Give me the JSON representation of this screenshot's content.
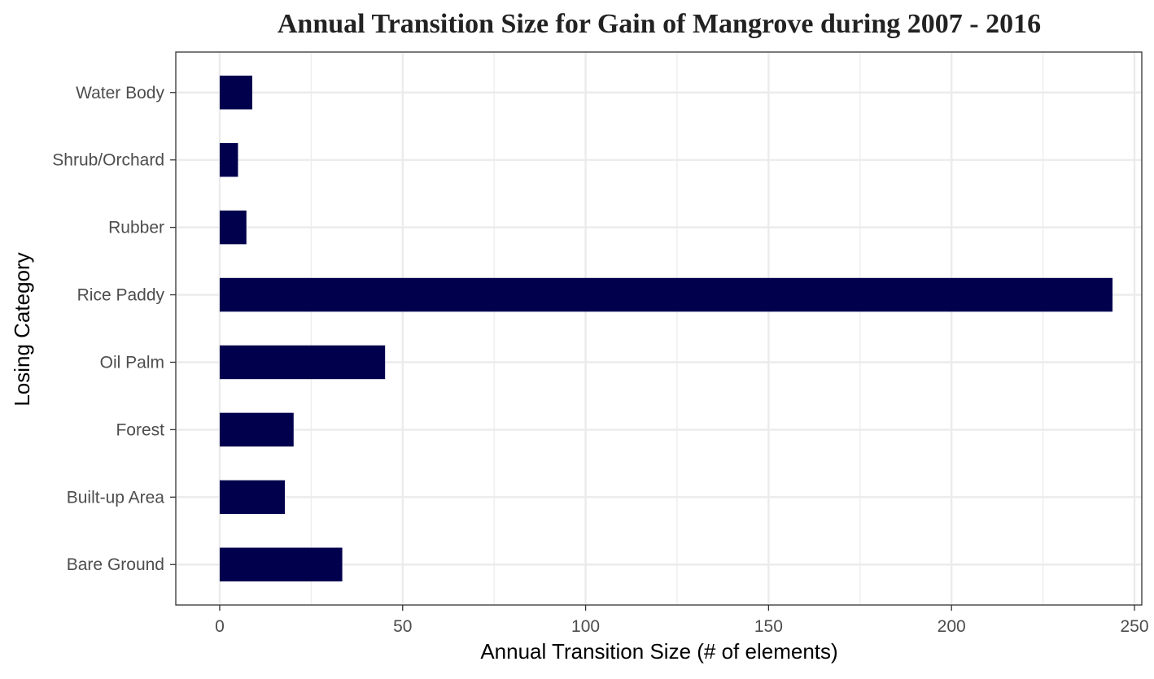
{
  "chart_data": {
    "type": "bar",
    "orientation": "horizontal",
    "title": "Annual Transition Size for Gain of  Mangrove during 2007 - 2016",
    "xlabel": "Annual Transition Size (# of elements)",
    "ylabel": "Losing Category",
    "categories": [
      "Bare Ground",
      "Built-up Area",
      "Forest",
      "Oil Palm",
      "Rice Paddy",
      "Rubber",
      "Shrub/Orchard",
      "Water Body"
    ],
    "values": [
      33.5,
      17.8,
      20.2,
      45.2,
      244.0,
      7.3,
      5.0,
      8.9
    ],
    "xlim": [
      -12,
      252
    ],
    "x_ticks": [
      0,
      50,
      100,
      150,
      200,
      250
    ],
    "x_tick_labels": [
      "0",
      "50",
      "100",
      "150",
      "200",
      "250"
    ],
    "x_minor_ticks": [
      25,
      75,
      125,
      175,
      225
    ],
    "grid": true,
    "legend": "none",
    "colors": {
      "bar": "#00004d",
      "grid": "#ebebeb",
      "panel_border": "#333333",
      "background": "#ffffff"
    }
  }
}
